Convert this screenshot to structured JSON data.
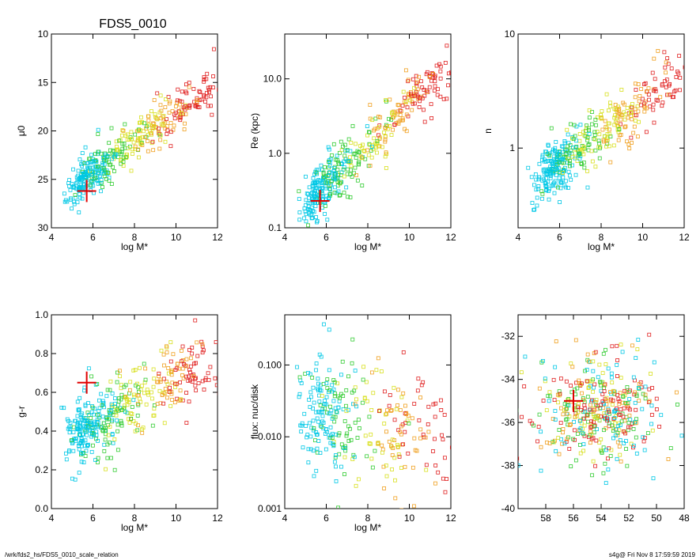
{
  "title": "FDS5_0010",
  "footer": {
    "left": "/wrk/fds2_hs/FDS5_0010_scale_relation",
    "right": "s4g@  Fri Nov  8 17:59:59 2019"
  },
  "chart_data": [
    {
      "type": "scatter",
      "xlabel": "log M*",
      "ylabel": "μ0",
      "xlim": [
        4,
        12
      ],
      "ylim": [
        30,
        10
      ],
      "xticks": [
        4,
        6,
        8,
        10,
        12
      ],
      "yticks": [
        10,
        15,
        20,
        25,
        30
      ],
      "xticklabels": [
        "4",
        "6",
        "8",
        "10",
        "12"
      ],
      "yticklabels": [
        "10",
        "15",
        "20",
        "25",
        "30"
      ],
      "trend": {
        "x0": 5.5,
        "y0": 25.0,
        "slope": -1.55,
        "scatter": 1.3,
        "n": 430
      },
      "highlight": {
        "x": 5.7,
        "y": 26.2,
        "size": "large"
      }
    },
    {
      "type": "scatter",
      "xlabel": "log M*",
      "ylabel": "Re (kpc)",
      "yscale": "log",
      "xlim": [
        4,
        12
      ],
      "ylim": [
        0.1,
        40
      ],
      "xticks": [
        4,
        6,
        8,
        10,
        12
      ],
      "yticks": [
        0.1,
        1.0,
        10.0
      ],
      "xticklabels": [
        "4",
        "6",
        "8",
        "10",
        "12"
      ],
      "yticklabels": [
        "0.1",
        "1.0",
        "10.0"
      ],
      "trend": {
        "x0": 5.5,
        "y0": -0.55,
        "slope": 0.26,
        "scatter": 0.22,
        "n": 430
      },
      "highlight": {
        "x": 5.7,
        "y": 0.23,
        "size": "large"
      }
    },
    {
      "type": "scatter",
      "xlabel": "log M*",
      "ylabel": "n",
      "yscale": "log",
      "xlim": [
        4,
        12
      ],
      "ylim": [
        0.2,
        10
      ],
      "xticks": [
        4,
        6,
        8,
        10,
        12
      ],
      "yticks": [
        1,
        10
      ],
      "xticklabels": [
        "4",
        "6",
        "8",
        "10",
        "12"
      ],
      "yticklabels": [
        "1",
        "10"
      ],
      "trend": {
        "x0": 5.5,
        "y0": -0.2,
        "slope": 0.13,
        "scatter": 0.15,
        "n": 430
      },
      "highlight": null
    },
    {
      "type": "scatter",
      "xlabel": "log M*",
      "ylabel": "g-r",
      "xlim": [
        4,
        12
      ],
      "ylim": [
        0.0,
        1.0
      ],
      "xticks": [
        4,
        6,
        8,
        10,
        12
      ],
      "yticks": [
        0.0,
        0.2,
        0.4,
        0.6,
        0.8,
        1.0
      ],
      "xticklabels": [
        "4",
        "6",
        "8",
        "10",
        "12"
      ],
      "yticklabels": [
        "0.0",
        "0.2",
        "0.4",
        "0.6",
        "0.8",
        "1.0"
      ],
      "trend": {
        "x0": 5.5,
        "y0": 0.4,
        "slope": 0.06,
        "scatter": 0.12,
        "n": 430
      },
      "highlight": {
        "x": 5.7,
        "y": 0.65,
        "size": "large"
      }
    },
    {
      "type": "scatter",
      "xlabel": "log M*",
      "ylabel": "flux: nuc/disk",
      "yscale": "log",
      "xlim": [
        4,
        12
      ],
      "ylim": [
        0.001,
        0.5
      ],
      "xticks": [
        4,
        6,
        8,
        10,
        12
      ],
      "yticks": [
        0.001,
        0.01,
        0.1
      ],
      "xticklabels": [
        "4",
        "6",
        "8",
        "10",
        "12"
      ],
      "yticklabels": [
        "0.001",
        "0.010",
        "0.100"
      ],
      "trend": {
        "x0": 5.5,
        "y0": -1.7,
        "slope": -0.05,
        "scatter": 0.5,
        "n": 320
      },
      "highlight": null
    },
    {
      "type": "scatter",
      "xlabel": "",
      "ylabel": "",
      "xlim": [
        60,
        48
      ],
      "ylim": [
        -40,
        -31
      ],
      "xticks": [
        58,
        56,
        54,
        52,
        50,
        48
      ],
      "yticks": [
        -40,
        -38,
        -36,
        -34,
        -32
      ],
      "xticklabels": [
        "58",
        "56",
        "54",
        "52",
        "50",
        "48"
      ],
      "yticklabels": [
        "-40",
        "-38",
        "-36",
        "-34",
        "-32"
      ],
      "trend": {
        "x0": 54.0,
        "y0": -35.5,
        "slope": 0,
        "scatter": 1.2,
        "n": 430,
        "spreadx": 2.2
      },
      "highlight": {
        "x": 56.0,
        "y": -35.0,
        "size": "large"
      }
    }
  ]
}
